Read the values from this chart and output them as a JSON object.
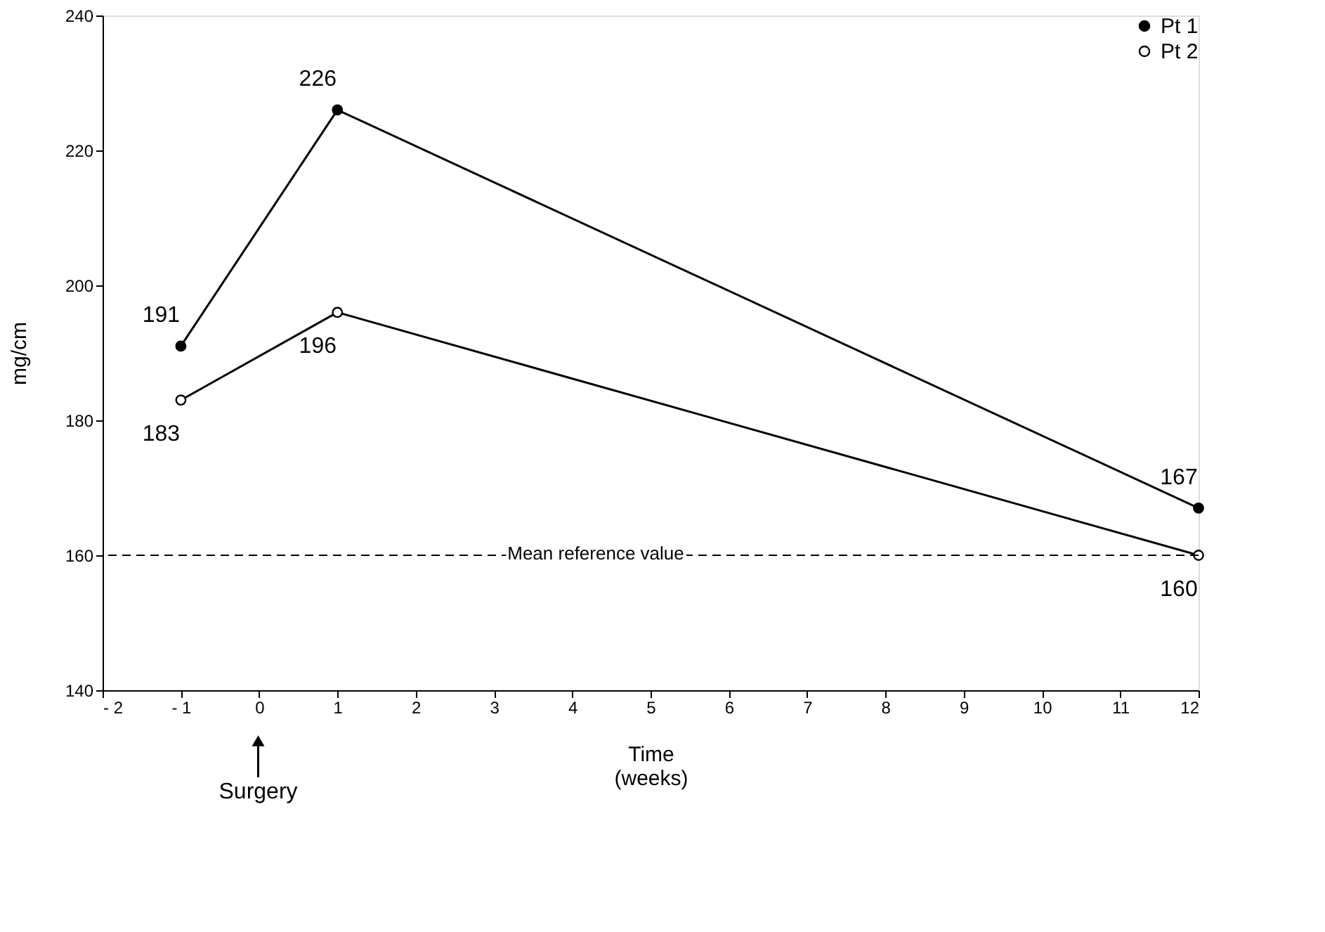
{
  "chart_data": {
    "type": "line",
    "xlabel": "Time\n(weeks)",
    "ylabel": "mg/cm",
    "x": [
      -1,
      1,
      12
    ],
    "series": [
      {
        "name": "Pt 1",
        "color": "#000000",
        "values": [
          191,
          226,
          167
        ]
      },
      {
        "name": "Pt 2",
        "color": "#000000",
        "values": [
          183,
          196,
          160
        ]
      }
    ],
    "xlim": [
      -2,
      12
    ],
    "xticks": [
      {
        "value": -2,
        "label": "- 2"
      },
      {
        "value": -1,
        "label": "- 1"
      },
      0,
      1,
      2,
      3,
      4,
      5,
      6,
      7,
      8,
      9,
      10,
      11,
      12
    ],
    "ylim": [
      140,
      240
    ],
    "yticks": [
      140,
      160,
      180,
      200,
      220,
      240
    ],
    "ref_lines": [
      {
        "axis": "y",
        "value": 160,
        "label": "Mean reference value",
        "line_style": "dashed"
      }
    ],
    "annotations": [
      "Surgery"
    ],
    "data_labels": true,
    "legend": "top right",
    "grid": false,
    "marker": "circle",
    "line_style": "solid"
  }
}
